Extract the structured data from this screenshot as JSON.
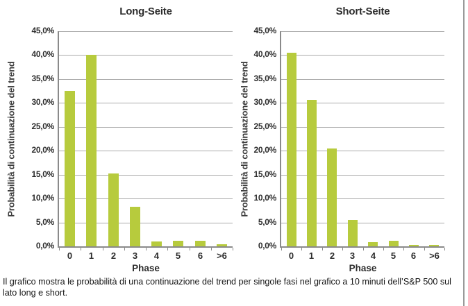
{
  "colors": {
    "bar": "#b7cb3d",
    "gridline": "#a9a9a9",
    "axis": "#8a8a8a",
    "text": "#2d2d2d",
    "border": "#9a9a9a",
    "caption": "#141414"
  },
  "caption": {
    "text": "Il grafico mostra le probabilità di una continuazione del trend per singole fasi nel grafico a 10 minuti dell’S&P 500 sul lato long e short."
  },
  "chart_data": [
    {
      "type": "bar",
      "title": "Long-Seite",
      "ylabel": "Probabilità di continuazione del trend",
      "xlabel": "Phase",
      "categories": [
        "0",
        "1",
        "2",
        "3",
        "4",
        "5",
        "6",
        ">6"
      ],
      "values": [
        32.5,
        40.0,
        15.2,
        8.3,
        1.0,
        1.2,
        1.2,
        0.5
      ],
      "ylim": [
        0,
        45
      ],
      "ytick_step": 5,
      "ytick_labels": [
        "45,0%",
        "40,0%",
        "35,0%",
        "30,0%",
        "25,0%",
        "20,0%",
        "15,0%",
        "10,0%",
        "5,0%",
        "0,0%"
      ],
      "grid": true,
      "legend": false
    },
    {
      "type": "bar",
      "title": "Short-Seite",
      "ylabel": "Probabilità di continuazione del trend",
      "xlabel": "Phase",
      "categories": [
        "0",
        "1",
        "2",
        "3",
        "4",
        "5",
        "6",
        ">6"
      ],
      "values": [
        40.5,
        30.7,
        20.5,
        5.5,
        0.9,
        1.2,
        0.3,
        0.3
      ],
      "ylim": [
        0,
        45
      ],
      "ytick_step": 5,
      "ytick_labels": [
        "45,0%",
        "40,0%",
        "35,0%",
        "30,0%",
        "25,0%",
        "20,0%",
        "15,0%",
        "10,0%",
        "5,0%",
        "0,0%"
      ],
      "grid": true,
      "legend": false
    }
  ]
}
